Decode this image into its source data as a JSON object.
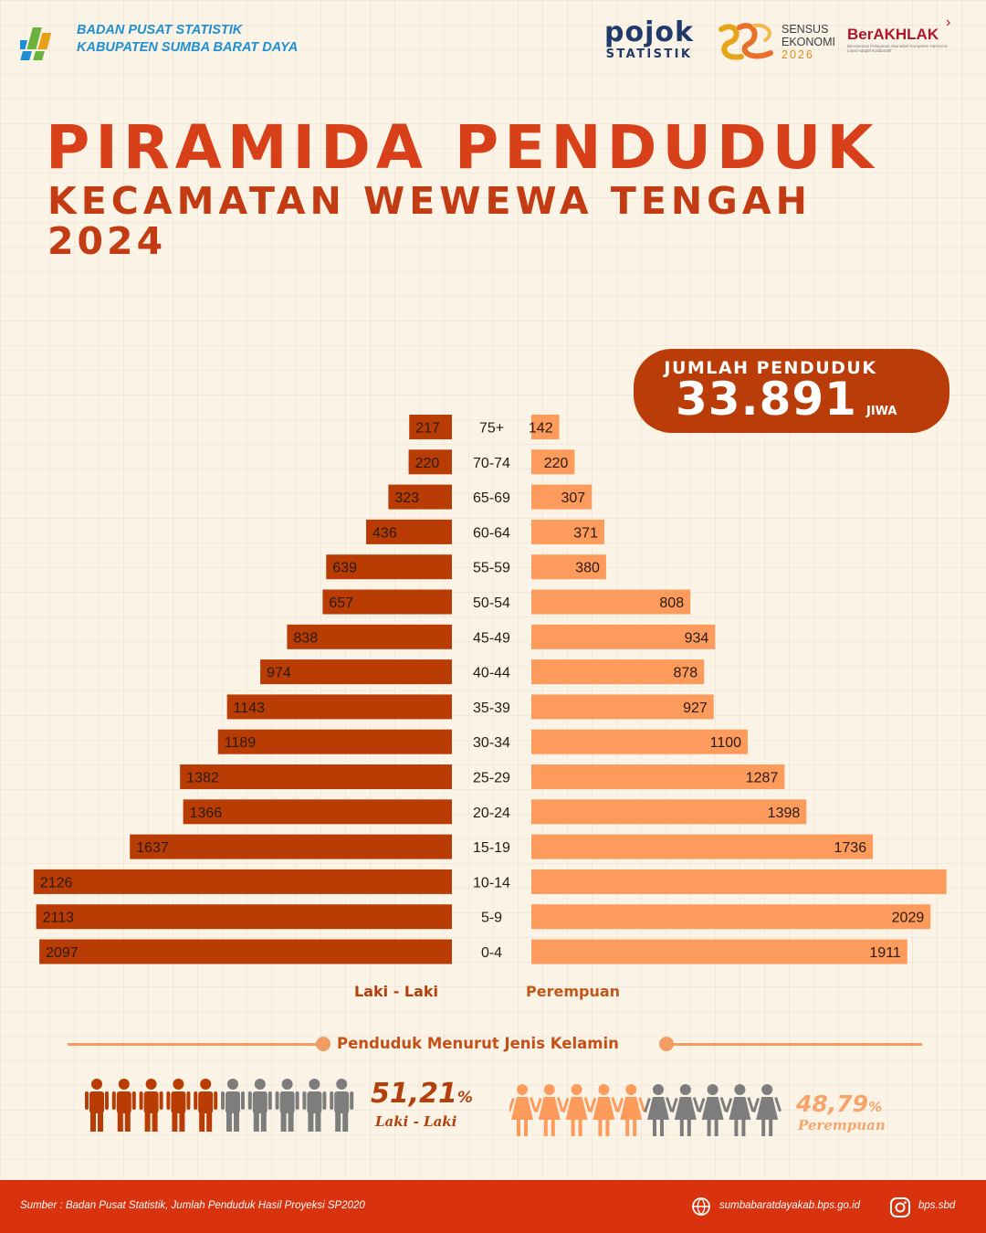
{
  "header": {
    "org_line1": "BADAN PUSAT STATISTIK",
    "org_line2": "KABUPATEN SUMBA BARAT DAYA",
    "pojok_1": "pojok",
    "pojok_2": "STATISTIK",
    "sensus_1": "SENSUS",
    "sensus_2": "EKONOMI",
    "sensus_3": "2026",
    "berakhlak": "BerAKHLAK",
    "berakhlak_sub": "Berorientasi Pelayanan Akuntabel Kompeten Harmonis Loyal Adaptif Kolaboratif"
  },
  "title": {
    "line1": "PIRAMIDA PENDUDUK",
    "line2": "KECAMATAN WEWEWA TENGAH",
    "line3": "2024"
  },
  "total": {
    "label": "JUMLAH PENDUDUK",
    "value": "33.891",
    "unit": "JIWA"
  },
  "chart_data": {
    "type": "bar",
    "orientation": "horizontal-pyramid",
    "categories": [
      "75+",
      "70-74",
      "65-69",
      "60-64",
      "55-59",
      "50-54",
      "45-49",
      "40-44",
      "35-39",
      "30-34",
      "25-29",
      "20-24",
      "15-19",
      "10-14",
      "5-9",
      "0-4"
    ],
    "series": [
      {
        "name": "Laki - Laki",
        "color": "#b83c04",
        "values": [
          217,
          220,
          323,
          436,
          639,
          657,
          838,
          974,
          1143,
          1189,
          1382,
          1366,
          1637,
          2126,
          2113,
          2097
        ]
      },
      {
        "name": "Perempuan",
        "color": "#fd9b5c",
        "values": [
          142,
          220,
          307,
          371,
          380,
          808,
          934,
          878,
          927,
          1100,
          1287,
          1398,
          1736,
          null,
          2029,
          1911
        ]
      }
    ],
    "female_10_14_estimate": 2110
  },
  "gender": {
    "title": "Penduduk Menurut Jenis Kelamin",
    "male_pct": "51,21",
    "male_pct_sign": "%",
    "male_label": "Laki - Laki",
    "female_pct": "48,79",
    "female_pct_sign": "%",
    "female_label": "Perempuan",
    "male_color": "#b83c04",
    "female_color": "#fd9b5c",
    "inactive_color": "#7d7d7d"
  },
  "footer": {
    "source": "Sumber : Badan Pusat Statistik, Jumlah Penduduk Hasil Proyeksi SP2020",
    "website": "sumbabaratdayakab.bps.go.id",
    "instagram": "bps.sbd"
  }
}
